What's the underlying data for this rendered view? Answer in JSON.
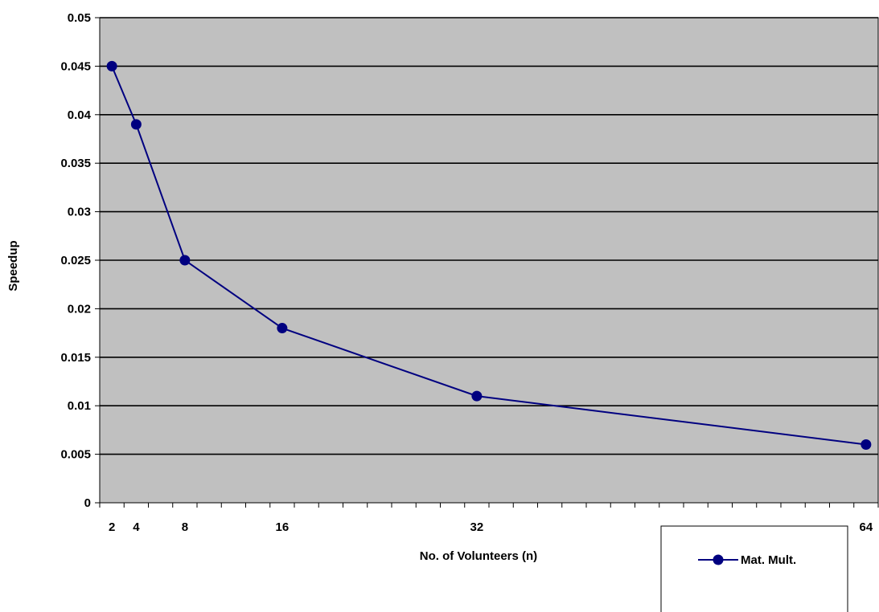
{
  "chart_data": {
    "type": "line",
    "xlabel": "No. of Volunteers (n)",
    "ylabel": "Speedup",
    "ylim": [
      0,
      0.05
    ],
    "y_ticks": [
      "0",
      "0.005",
      "0.01",
      "0.015",
      "0.02",
      "0.025",
      "0.03",
      "0.035",
      "0.04",
      "0.045",
      "0.05"
    ],
    "x_tick_labels": [
      "2",
      "4",
      "8",
      "16",
      "32",
      "64"
    ],
    "x_category_count": 32,
    "grid": true,
    "legend_position": "bottom-right",
    "plot_background": "#c0c0c0",
    "series": [
      {
        "name": "Mat. Mult.",
        "color": "#000080",
        "marker": "circle",
        "x": [
          2,
          4,
          8,
          16,
          32,
          64
        ],
        "values": [
          0.045,
          0.039,
          0.025,
          0.018,
          0.011,
          0.006
        ]
      }
    ]
  }
}
